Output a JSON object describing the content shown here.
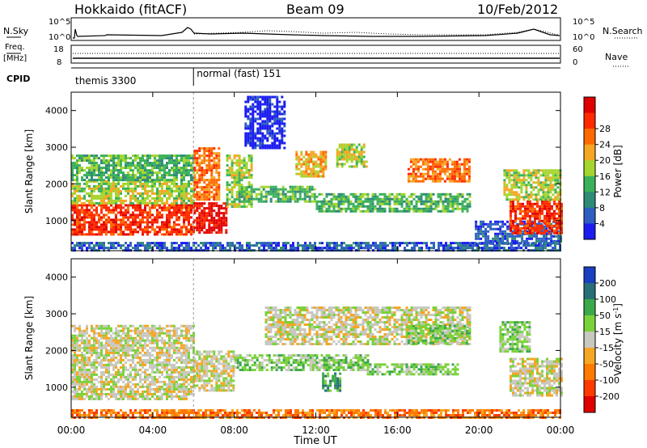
{
  "header": {
    "station": "Hokkaido (fitACF)",
    "beam": "Beam 09",
    "date": "10/Feb/2012"
  },
  "top_strips": {
    "nsky_label": "N.Sky",
    "nsky_ticks": [
      "10^5",
      "10^0"
    ],
    "nsearch_label": "N.Search",
    "nsearch_ticks": [
      "10^5",
      "10^0"
    ],
    "freq_label_1": "Freq.",
    "freq_label_2": "[MHz]",
    "freq_ticks": [
      "18",
      "8"
    ],
    "nave_label": "Nave",
    "nave_ticks": [
      "60",
      "0"
    ],
    "cpid_label": "CPID",
    "cpid_modes": [
      {
        "label": "themis 3300",
        "start_hour": 0,
        "end_hour": 6
      },
      {
        "label": "normal (fast) 151",
        "start_hour": 6,
        "end_hour": 24
      }
    ]
  },
  "chart_data": [
    {
      "type": "heatmap",
      "panel": "power",
      "ylabel": "Slant Range [km]",
      "xlabel": "",
      "xlim": [
        0,
        24
      ],
      "ylim": [
        180,
        4500
      ],
      "yticks": [
        "1000",
        "2000",
        "3000",
        "4000"
      ],
      "xticks": [
        "00:00",
        "04:00",
        "08:00",
        "12:00",
        "16:00",
        "20:00",
        "00:00"
      ],
      "colorbar": {
        "label": "Power [dB]",
        "ticks": [
          "4",
          "8",
          "12",
          "16",
          "20",
          "24",
          "28"
        ],
        "colors": [
          "#1c1cf0",
          "#2e5fc0",
          "#2f8a78",
          "#3ab25a",
          "#a5d52f",
          "#f5a623",
          "#ff6a00",
          "#ff2a00",
          "#e00000"
        ]
      },
      "regions": [
        {
          "t0": 0.0,
          "t1": 6.0,
          "r0": 650,
          "r1": 1450,
          "level": 7
        },
        {
          "t0": 0.0,
          "t1": 6.0,
          "r0": 1450,
          "r1": 2100,
          "level": 4
        },
        {
          "t0": 0.0,
          "t1": 6.0,
          "r0": 2100,
          "r1": 2800,
          "level": 3
        },
        {
          "t0": 6.0,
          "t1": 7.6,
          "r0": 700,
          "r1": 1500,
          "level": 8
        },
        {
          "t0": 6.0,
          "t1": 7.3,
          "r0": 1600,
          "r1": 3000,
          "level": 6
        },
        {
          "t0": 7.6,
          "t1": 8.8,
          "r0": 1400,
          "r1": 2800,
          "level": 4
        },
        {
          "t0": 8.2,
          "t1": 12.0,
          "r0": 1500,
          "r1": 1950,
          "level": 3
        },
        {
          "t0": 12.0,
          "t1": 19.5,
          "r0": 1250,
          "r1": 1750,
          "level": 3
        },
        {
          "t0": 11.0,
          "t1": 12.5,
          "r0": 2200,
          "r1": 2900,
          "level": 5
        },
        {
          "t0": 13.0,
          "t1": 14.5,
          "r0": 2500,
          "r1": 3100,
          "level": 4
        },
        {
          "t0": 16.5,
          "t1": 19.5,
          "r0": 2100,
          "r1": 2700,
          "level": 6
        },
        {
          "t0": 19.8,
          "t1": 24.0,
          "r0": 400,
          "r1": 1000,
          "level": 1
        },
        {
          "t0": 21.5,
          "t1": 24.0,
          "r0": 650,
          "r1": 1550,
          "level": 7
        },
        {
          "t0": 21.2,
          "t1": 24.0,
          "r0": 1600,
          "r1": 2400,
          "level": 4
        },
        {
          "t0": 0.0,
          "t1": 24.0,
          "r0": 220,
          "r1": 420,
          "level": 1
        },
        {
          "t0": 8.5,
          "t1": 10.5,
          "r0": 3000,
          "r1": 4400,
          "level": 0
        }
      ]
    },
    {
      "type": "heatmap",
      "panel": "velocity",
      "ylabel": "Slant Range [km]",
      "xlabel": "Time UT",
      "xlim": [
        0,
        24
      ],
      "ylim": [
        180,
        4500
      ],
      "yticks": [
        "1000",
        "2000",
        "3000",
        "4000"
      ],
      "xticks": [
        "00:00",
        "04:00",
        "08:00",
        "12:00",
        "16:00",
        "20:00",
        "00:00"
      ],
      "colorbar": {
        "label": "Velocity [m s",
        "label_sup": "-1",
        "ticks": [
          "200",
          "100",
          "50",
          "15",
          "-15",
          "-50",
          "-100",
          "-200"
        ],
        "colors": [
          "#1a3fc0",
          "#2a6e78",
          "#3ba84a",
          "#7ad23a",
          "#c8c8c0",
          "#f5a623",
          "#ff7a00",
          "#ff3a00",
          "#e00000"
        ]
      },
      "regions": [
        {
          "t0": 0.0,
          "t1": 6.0,
          "r0": 700,
          "r1": 2100,
          "level": 4
        },
        {
          "t0": 0.0,
          "t1": 6.0,
          "r0": 2100,
          "r1": 2700,
          "level": 4
        },
        {
          "t0": 6.0,
          "t1": 8.0,
          "r0": 900,
          "r1": 2000,
          "level": 4
        },
        {
          "t0": 8.0,
          "t1": 12.0,
          "r0": 1450,
          "r1": 1900,
          "level": 3
        },
        {
          "t0": 12.0,
          "t1": 14.5,
          "r0": 1500,
          "r1": 1900,
          "level": 3
        },
        {
          "t0": 14.5,
          "t1": 19.0,
          "r0": 1350,
          "r1": 1650,
          "level": 3
        },
        {
          "t0": 9.5,
          "t1": 19.5,
          "r0": 2200,
          "r1": 3200,
          "level": 4
        },
        {
          "t0": 16.5,
          "t1": 19.5,
          "r0": 2200,
          "r1": 2700,
          "level": 3
        },
        {
          "t0": 21.5,
          "t1": 24.0,
          "r0": 800,
          "r1": 1800,
          "level": 4
        },
        {
          "t0": 21.0,
          "t1": 22.5,
          "r0": 2000,
          "r1": 2800,
          "level": 3
        },
        {
          "t0": 0.0,
          "t1": 24.0,
          "r0": 200,
          "r1": 400,
          "level": 6
        },
        {
          "t0": 12.3,
          "t1": 13.2,
          "r0": 900,
          "r1": 1400,
          "level": 2
        }
      ]
    }
  ]
}
